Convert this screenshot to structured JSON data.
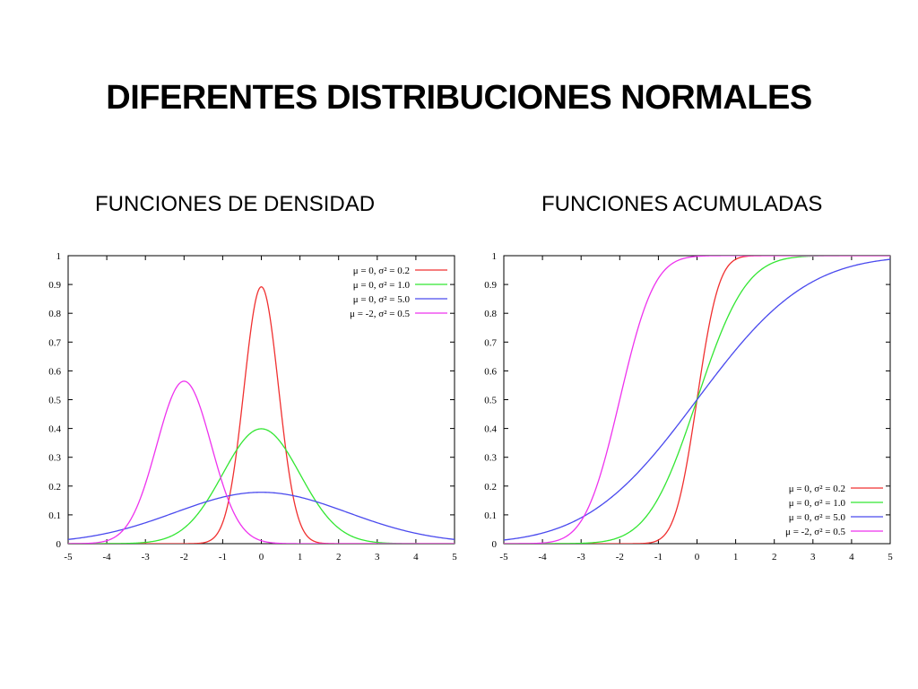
{
  "title": "DIFERENTES DISTRIBUCIONES NORMALES",
  "panels": [
    {
      "subtitle": "FUNCIONES DE DENSIDAD"
    },
    {
      "subtitle": "FUNCIONES ACUMULADAS"
    }
  ],
  "chart_data": [
    {
      "type": "line",
      "function": "pdf",
      "xlim": [
        -5,
        5
      ],
      "ylim": [
        0,
        1
      ],
      "x_ticks": [
        "-5",
        "-4",
        "-3",
        "-2",
        "-1",
        "0",
        "1",
        "2",
        "3",
        "4",
        "5"
      ],
      "y_ticks": [
        "0",
        "0.1",
        "0.2",
        "0.3",
        "0.4",
        "0.5",
        "0.6",
        "0.7",
        "0.8",
        "0.9",
        "1"
      ],
      "legend_position": "top-right",
      "series": [
        {
          "name": "μ = 0, σ² = 0.2",
          "mu": 0,
          "variance": 0.2,
          "color": "#f03030"
        },
        {
          "name": "μ = 0, σ² = 1.0",
          "mu": 0,
          "variance": 1.0,
          "color": "#33e633"
        },
        {
          "name": "μ = 0, σ² = 5.0",
          "mu": 0,
          "variance": 5.0,
          "color": "#4a4aee"
        },
        {
          "name": "μ = -2, σ² = 0.5",
          "mu": -2,
          "variance": 0.5,
          "color": "#ee33ee"
        }
      ]
    },
    {
      "type": "line",
      "function": "cdf",
      "xlim": [
        -5,
        5
      ],
      "ylim": [
        0,
        1
      ],
      "x_ticks": [
        "-5",
        "-4",
        "-3",
        "-2",
        "-1",
        "0",
        "1",
        "2",
        "3",
        "4",
        "5"
      ],
      "y_ticks": [
        "0",
        "0.1",
        "0.2",
        "0.3",
        "0.4",
        "0.5",
        "0.6",
        "0.7",
        "0.8",
        "0.9",
        "1"
      ],
      "legend_position": "bottom-right",
      "series": [
        {
          "name": "μ = 0, σ² = 0.2",
          "mu": 0,
          "variance": 0.2,
          "color": "#f03030"
        },
        {
          "name": "μ = 0, σ² = 1.0",
          "mu": 0,
          "variance": 1.0,
          "color": "#33e633"
        },
        {
          "name": "μ = 0, σ² = 5.0",
          "mu": 0,
          "variance": 5.0,
          "color": "#4a4aee"
        },
        {
          "name": "μ = -2, σ² = 0.5",
          "mu": -2,
          "variance": 0.5,
          "color": "#ee33ee"
        }
      ]
    }
  ]
}
